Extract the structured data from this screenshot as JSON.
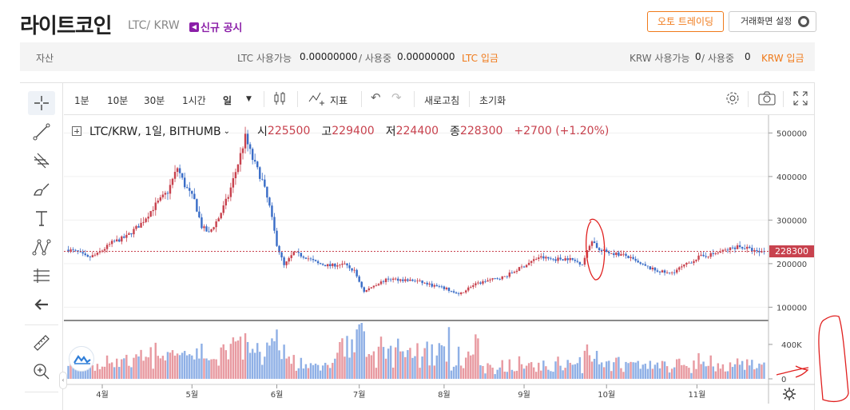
{
  "header": {
    "coin_name": "라이트코인",
    "pair": "LTC/ KRW",
    "notice": "신규 공시",
    "auto_trading": "오토 트레이딩",
    "screen_setting": "거래화면 설정"
  },
  "asset_bar": {
    "label": "자산",
    "ltc_available_label": "LTC 사용가능",
    "ltc_available": "0.00000000",
    "ltc_inuse_label": "/ 사용중",
    "ltc_inuse": "0.00000000",
    "ltc_deposit": "LTC 입금",
    "krw_available_label": "KRW 사용가능",
    "krw_available": "0",
    "krw_inuse_label": "/ 사용중",
    "krw_inuse": "0",
    "krw_deposit": "KRW 입금"
  },
  "toolbar": {
    "intervals": [
      "1분",
      "10분",
      "30분",
      "1시간",
      "일"
    ],
    "selected_interval": "일",
    "indicator": "지표",
    "refresh": "새로고침",
    "reset": "초기화"
  },
  "legend": {
    "symbol": "LTC/KRW, 1일, BITHUMB",
    "open_label": "시",
    "open": "225500",
    "high_label": "고",
    "high": "229400",
    "low_label": "저",
    "low": "224400",
    "close_label": "종",
    "close": "228300",
    "change": "+2700 (+1.20%)"
  },
  "colors": {
    "up": "#c8424e",
    "down": "#3a6dc7",
    "vol_up": "#e89aa1",
    "vol_down": "#8fb0e6",
    "accent": "#f07a1a"
  },
  "icons": [
    "crosshair-icon",
    "trend-line-icon",
    "fib-icon",
    "brush-icon",
    "text-icon",
    "pattern-icon",
    "measure-icon",
    "back-arrow-icon",
    "ruler-icon",
    "zoom-in-icon",
    "candle-type-icon",
    "indicator-icon",
    "undo-icon",
    "redo-icon",
    "settings-icon",
    "camera-icon",
    "fullscreen-icon",
    "gear-icon",
    "chart-logo-icon"
  ],
  "chart_data": {
    "type": "candlestick",
    "x_labels": [
      "4월",
      "5월",
      "6월",
      "7월",
      "8월",
      "9월",
      "10월",
      "11월"
    ],
    "y_ticks": [
      100000,
      200000,
      300000,
      400000,
      500000
    ],
    "y_tick_labels": [
      "100000",
      "200000",
      "300000",
      "400000",
      "500000"
    ],
    "ylim": [
      75000,
      530000
    ],
    "last_price": 228300,
    "last_price_label": "228300",
    "volume_ticks": [
      "0",
      "400K"
    ],
    "volume_ylim": [
      0,
      650000
    ],
    "close_path": [
      [
        0,
        232000
      ],
      [
        4,
        226000
      ],
      [
        8,
        213000
      ],
      [
        12,
        222000
      ],
      [
        18,
        248000
      ],
      [
        24,
        262000
      ],
      [
        30,
        292000
      ],
      [
        36,
        335000
      ],
      [
        41,
        365000
      ],
      [
        45,
        420000
      ],
      [
        48,
        380000
      ],
      [
        52,
        345000
      ],
      [
        55,
        285000
      ],
      [
        58,
        270000
      ],
      [
        62,
        305000
      ],
      [
        66,
        355000
      ],
      [
        70,
        430000
      ],
      [
        73,
        490000
      ],
      [
        76,
        440000
      ],
      [
        80,
        390000
      ],
      [
        83,
        330000
      ],
      [
        86,
        245000
      ],
      [
        89,
        195000
      ],
      [
        93,
        225000
      ],
      [
        98,
        215000
      ],
      [
        103,
        200000
      ],
      [
        108,
        195000
      ],
      [
        113,
        200000
      ],
      [
        118,
        183000
      ],
      [
        122,
        135000
      ],
      [
        126,
        150000
      ],
      [
        132,
        165000
      ],
      [
        138,
        163000
      ],
      [
        144,
        160000
      ],
      [
        150,
        150000
      ],
      [
        156,
        142000
      ],
      [
        161,
        128000
      ],
      [
        166,
        148000
      ],
      [
        172,
        160000
      ],
      [
        180,
        170000
      ],
      [
        188,
        195000
      ],
      [
        194,
        215000
      ],
      [
        200,
        210000
      ],
      [
        206,
        212000
      ],
      [
        212,
        200000
      ],
      [
        216,
        255000
      ],
      [
        219,
        230000
      ],
      [
        224,
        225000
      ],
      [
        230,
        218000
      ],
      [
        236,
        198000
      ],
      [
        242,
        185000
      ],
      [
        248,
        177000
      ],
      [
        254,
        195000
      ],
      [
        260,
        215000
      ],
      [
        266,
        222000
      ],
      [
        272,
        232000
      ],
      [
        276,
        240000
      ],
      [
        280,
        235000
      ],
      [
        284,
        226000
      ],
      [
        287,
        228300
      ]
    ]
  }
}
